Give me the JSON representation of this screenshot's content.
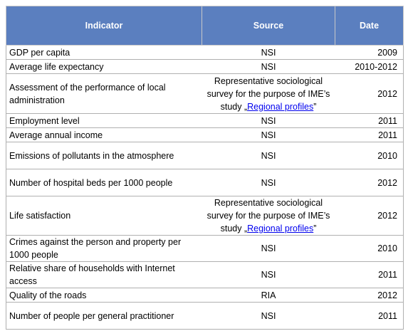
{
  "table": {
    "header": [
      "Indicator",
      "Source",
      "Date"
    ],
    "rows": [
      [
        "GDP per capita",
        "NSI",
        "2009"
      ],
      [
        "Average life expectancy",
        "NSI",
        "2010-2012"
      ],
      [
        "Assessment of the performance of local administration",
        {
          "text": "Representative sociological survey for the purpose of IME’s study „",
          "link": "Regional profiles",
          "after": "”"
        },
        "2012"
      ],
      [
        "Employment level",
        "NSI",
        "2011"
      ],
      [
        "Average annual income",
        "NSI",
        "2011"
      ],
      [
        "Emissions of pollutants in the atmosphere",
        "NSI",
        "2010"
      ],
      [
        "Number of hospital beds per 1000 people",
        "NSI",
        "2012"
      ],
      [
        "Life satisfaction",
        {
          "text": "Representative sociological survey for the purpose of IME’s study „",
          "link": "Regional profiles",
          "after": "”"
        },
        "2012"
      ],
      [
        "Crimes against the person and property per 1000  people",
        "NSI",
        "2010"
      ],
      [
        "Relative share of households with Internet access",
        "NSI",
        "2011"
      ],
      [
        "Quality of the roads",
        "RIA",
        "2012"
      ],
      [
        "Number of people per general practitioner",
        "NSI",
        "2011"
      ]
    ]
  }
}
